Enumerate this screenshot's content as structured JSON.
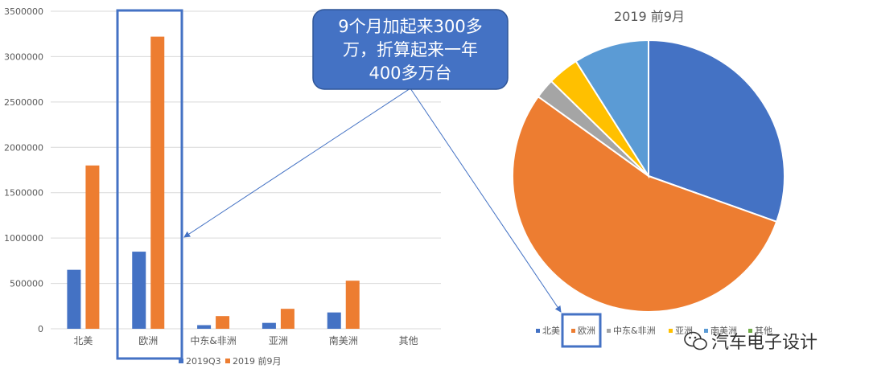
{
  "chart_data": [
    {
      "type": "bar",
      "categories": [
        "北美",
        "欧洲",
        "中东&非洲",
        "亚洲",
        "南美洲",
        "其他"
      ],
      "series": [
        {
          "name": "2019Q3",
          "values": [
            650000,
            850000,
            40000,
            65000,
            180000,
            0
          ]
        },
        {
          "name": "2019 前9月",
          "values": [
            1800000,
            3220000,
            140000,
            220000,
            530000,
            0
          ]
        }
      ],
      "ylim": [
        0,
        3500000
      ],
      "yticks": [
        0,
        500000,
        1000000,
        1500000,
        2000000,
        2500000,
        3000000,
        3500000
      ],
      "grid": true,
      "legend": "bottom",
      "xlabel": "",
      "ylabel": ""
    },
    {
      "type": "pie",
      "title": "2019 前9月",
      "labels": [
        "北美",
        "欧洲",
        "中东&非洲",
        "亚洲",
        "南美洲",
        "其他"
      ],
      "values": [
        1800000,
        3220000,
        140000,
        220000,
        530000,
        0
      ],
      "legend": "bottom"
    }
  ],
  "annotation": {
    "text_lines": [
      "9个月加起来300多",
      "万，折算起来一年",
      "400多万台"
    ]
  },
  "colors": {
    "series1": "#4472C4",
    "series2": "#ED7D31",
    "pie": [
      "#4472C4",
      "#ED7D31",
      "#A5A5A5",
      "#FFC000",
      "#5B9BD5",
      "#70AD47"
    ],
    "callout_fill": "#4472C4",
    "highlight_box": "#4472C4",
    "gridline": "#D9D9D9"
  },
  "watermark": {
    "text": "汽车电子设计",
    "icon": "wechat-icon"
  }
}
